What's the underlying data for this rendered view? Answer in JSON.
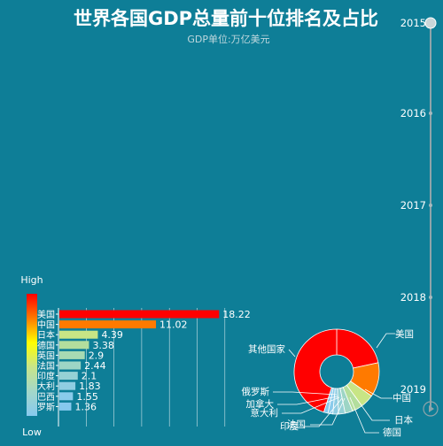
{
  "chart_data": [
    {
      "type": "bar",
      "title": "世界各国GDP总量前十位排名及占比",
      "subtitle": "GDP单位:万亿美元",
      "orientation": "horizontal",
      "categories": [
        "美国",
        "中国",
        "日本",
        "德国",
        "英国",
        "法国",
        "印度",
        "意大利",
        "巴西",
        "俄罗斯"
      ],
      "values": [
        18.22,
        11.02,
        4.39,
        3.38,
        2.9,
        2.44,
        2.1,
        1.83,
        1.55,
        1.36
      ],
      "xlim": [
        0,
        19
      ],
      "visual_map": {
        "high_label": "High",
        "low_label": "Low",
        "colors": [
          "#ff0000",
          "#ff7a00",
          "#ffff00",
          "#c7e58a",
          "#a3d7c9",
          "#87c9ee"
        ]
      },
      "bar_colors": [
        "#ff0000",
        "#ff7a00",
        "#c8e585",
        "#b3de9d",
        "#a7dab3",
        "#9dd5c5",
        "#95d1d5",
        "#8fcde2",
        "#8acbeb",
        "#87c9ee"
      ]
    },
    {
      "type": "pie",
      "style": "donut",
      "labels": [
        "美国",
        "中国",
        "日本",
        "德国",
        "法国",
        "印度",
        "意大利",
        "加拿大",
        "俄罗斯",
        "其他国家"
      ],
      "values": [
        18.22,
        11.02,
        4.39,
        3.38,
        2.44,
        2.1,
        1.83,
        1.55,
        1.36,
        38.0
      ],
      "colors": [
        "#ff0000",
        "#ff7a00",
        "#c8e585",
        "#b3de9d",
        "#9dd5c5",
        "#95d1d5",
        "#8fcde2",
        "#8acbeb",
        "#87c9ee",
        "#ff0000"
      ]
    }
  ],
  "timeline": {
    "years": [
      "2015",
      "2016",
      "2017",
      "2018",
      "2019"
    ],
    "current": "2015",
    "play_icon": "play-icon"
  }
}
